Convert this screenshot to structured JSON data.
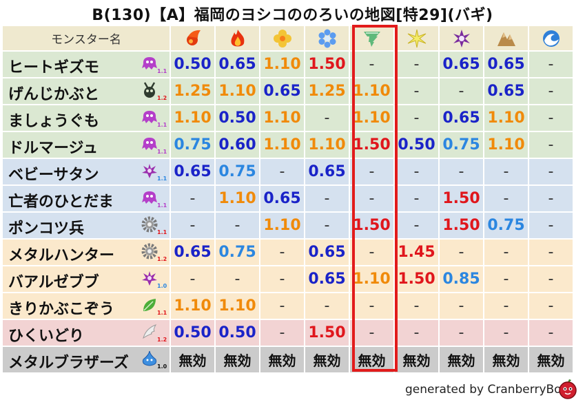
{
  "title": "B(130)【A】福岡のヨシコののろいの地図[特29](バギ)",
  "header_label": "モンスター名",
  "element_icons": [
    "mera-fire-icon",
    "gira-flame-icon",
    "io-blast-icon",
    "hyado-ice-icon",
    "bagi-wind-icon",
    "dein-lightning-icon",
    "do-dark-icon",
    "jibaria-earth-icon",
    "water-wave-icon"
  ],
  "highlight_column": "bagi-wind",
  "colors": {
    "blue": "#1a23c8",
    "sky": "#2b86e0",
    "orange": "#f08a0a",
    "red": "#e0161c",
    "highlight": "#e21b1b"
  },
  "rows": [
    {
      "name": "ヒートギズモ",
      "level": "1.1",
      "icon": "ghost-monster-icon",
      "vals": [
        "0.50",
        "0.65",
        "1.10",
        "1.50",
        "-",
        "-",
        "0.65",
        "0.65",
        "-"
      ]
    },
    {
      "name": "げんじかぶと",
      "level": "1.2",
      "icon": "beetle-monster-icon",
      "vals": [
        "1.25",
        "1.10",
        "0.65",
        "1.25",
        "1.10",
        "-",
        "-",
        "0.65",
        "-"
      ]
    },
    {
      "name": "ましょうぐも",
      "level": "1.1",
      "icon": "ghost-monster-icon",
      "vals": [
        "1.10",
        "0.50",
        "1.10",
        "-",
        "1.10",
        "-",
        "0.65",
        "1.10",
        "-"
      ]
    },
    {
      "name": "ドルマージュ",
      "level": "1.1",
      "icon": "ghost-monster-icon",
      "vals": [
        "0.75",
        "0.60",
        "1.10",
        "1.10",
        "1.50",
        "0.50",
        "0.75",
        "1.10",
        "-"
      ]
    },
    {
      "name": "ベビーサタン",
      "level": "1.1",
      "icon": "devil-monster-icon",
      "vals": [
        "0.65",
        "0.75",
        "-",
        "0.65",
        "-",
        "-",
        "-",
        "-",
        "-"
      ]
    },
    {
      "name": "亡者のひとだま",
      "level": "1.1",
      "icon": "ghost-monster-icon",
      "vals": [
        "-",
        "1.10",
        "0.65",
        "-",
        "-",
        "-",
        "1.50",
        "-",
        "-"
      ]
    },
    {
      "name": "ポンコツ兵",
      "level": "1.1",
      "icon": "gear-monster-icon",
      "vals": [
        "-",
        "-",
        "1.10",
        "-",
        "1.50",
        "-",
        "1.50",
        "0.75",
        "-"
      ]
    },
    {
      "name": "メタルハンター",
      "level": "1.2",
      "icon": "gear-monster-icon",
      "vals": [
        "0.65",
        "0.75",
        "-",
        "0.65",
        "-",
        "1.45",
        "-",
        "-",
        "-"
      ]
    },
    {
      "name": "バアルゼブブ",
      "level": "1.0",
      "icon": "devil-monster-icon",
      "vals": [
        "-",
        "-",
        "-",
        "0.65",
        "1.10",
        "1.50",
        "0.85",
        "-",
        "-"
      ]
    },
    {
      "name": "きりかぶこぞう",
      "level": "1.1",
      "icon": "leaf-monster-icon",
      "vals": [
        "1.10",
        "1.10",
        "-",
        "-",
        "-",
        "-",
        "-",
        "-",
        "-"
      ]
    },
    {
      "name": "ひくいどり",
      "level": "1.2",
      "icon": "wing-monster-icon",
      "vals": [
        "0.50",
        "0.50",
        "-",
        "1.50",
        "-",
        "-",
        "-",
        "-",
        "-"
      ]
    },
    {
      "name": "メタルブラザーズ",
      "level": "1.0",
      "icon": "slime-monster-icon",
      "vals": [
        "無効",
        "無効",
        "無効",
        "無効",
        "無効",
        "無効",
        "無効",
        "無効",
        "無効"
      ]
    }
  ],
  "footer": "generated by CranberryBot"
}
